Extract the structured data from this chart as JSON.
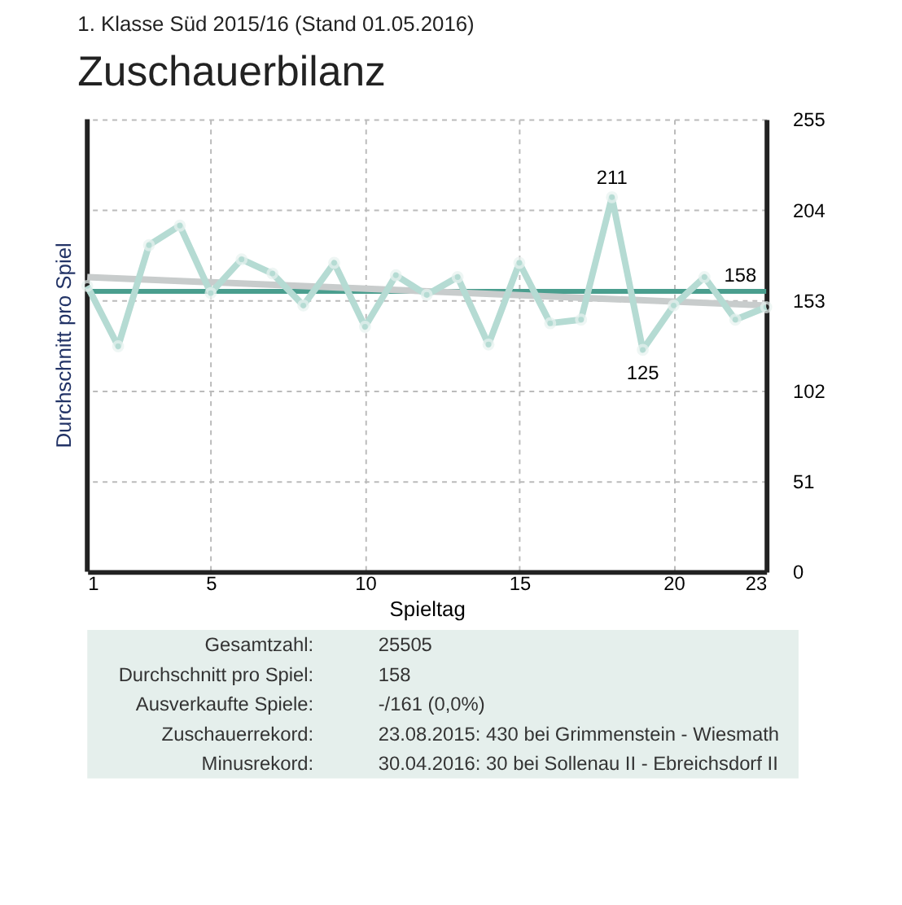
{
  "chart_data": {
    "type": "line",
    "subtitle": "1. Klasse Süd 2015/16 (Stand 01.05.2016)",
    "title": "Zuschauerbilanz",
    "xlabel": "Spieltag",
    "ylabel": "Durchschnitt pro Spiel",
    "x": [
      1,
      2,
      3,
      4,
      5,
      6,
      7,
      8,
      9,
      10,
      11,
      12,
      13,
      14,
      15,
      16,
      17,
      18,
      19,
      20,
      21,
      22,
      23
    ],
    "series": [
      {
        "color": "#b5dbd3",
        "marker": "circle",
        "values": [
          161,
          127,
          184,
          195,
          157,
          176,
          168,
          150,
          174,
          138,
          167,
          156,
          166,
          128,
          174,
          140,
          142,
          211,
          125,
          150,
          166,
          142,
          149
        ]
      },
      {
        "type": "line",
        "color": "#c8cccc",
        "x": [
          1,
          23
        ],
        "values": [
          166,
          150
        ]
      }
    ],
    "ref_lines": [
      {
        "axis": "y",
        "value": 158,
        "label": "158",
        "color": "#4a9e8e"
      }
    ],
    "xlim": [
      1,
      23
    ],
    "xticks": [
      1,
      5,
      10,
      15,
      20,
      23
    ],
    "ylim": [
      0,
      255
    ],
    "yticks": [
      0,
      51,
      102,
      153,
      204,
      255
    ],
    "grid": true,
    "legend": false,
    "line_style": "solid",
    "annotations": [
      {
        "text": "211",
        "x": 18,
        "y": 211
      },
      {
        "text": "125",
        "x": 19,
        "y": 125
      },
      "Gesamtzahl:",
      "25505",
      "Durchschnitt pro Spiel:",
      "158",
      "Ausverkaufte Spiele:",
      "-/161 (0,0%)",
      "Zuschauerrekord:",
      "23.08.2015: 430 bei Grimmenstein - Wiesmath",
      "Minusrekord:",
      "30.04.2016: 30 bei Sollenau II - Ebreichsdorf II"
    ]
  }
}
